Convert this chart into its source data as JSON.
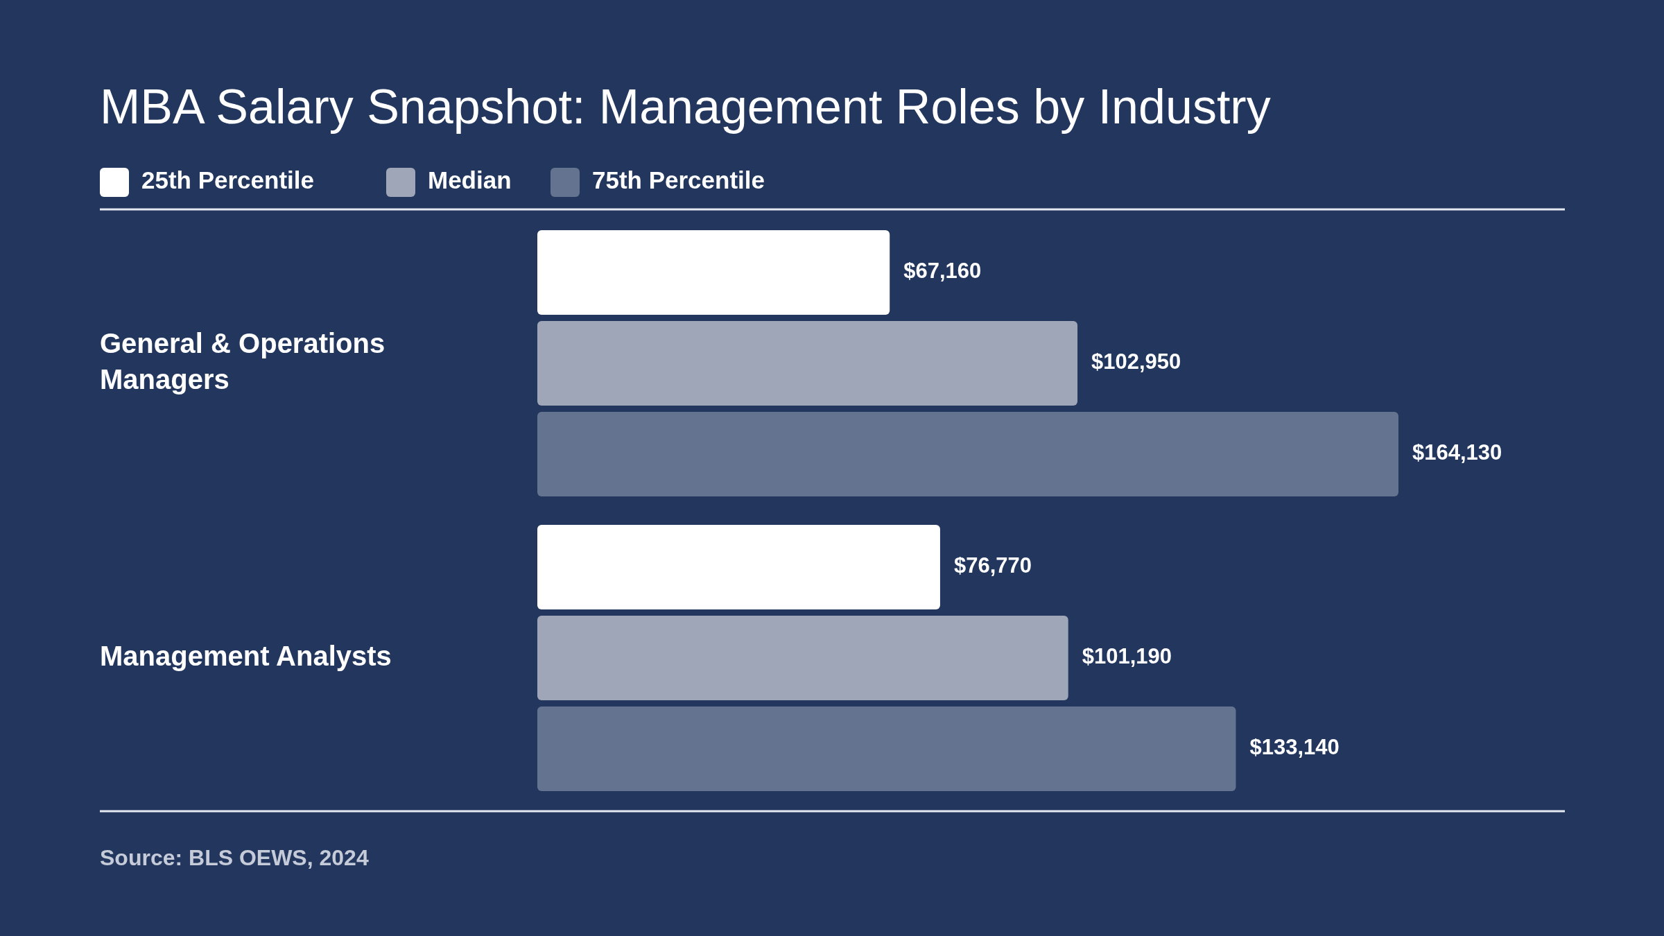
{
  "chart_data": {
    "type": "bar",
    "orientation": "horizontal",
    "title": "MBA Salary Snapshot: Management Roles by Industry",
    "categories": [
      "General & Operations Managers",
      "Management Analysts"
    ],
    "series": [
      {
        "name": "25th Percentile",
        "color": "#ffffff",
        "values": [
          67160,
          76770
        ],
        "value_labels": [
          "$67,160",
          "$76,770"
        ]
      },
      {
        "name": "Median",
        "color": "#9ea6b8",
        "values": [
          102950,
          101190
        ],
        "value_labels": [
          "$102,950",
          "$101,190"
        ]
      },
      {
        "name": "75th Percentile",
        "color": "#64738f",
        "values": [
          164130,
          133140
        ],
        "value_labels": [
          "$164,130",
          "$133,140"
        ]
      }
    ],
    "legend": "top left",
    "annotations": [
      "Source: BLS OEWS, 2024"
    ]
  }
}
